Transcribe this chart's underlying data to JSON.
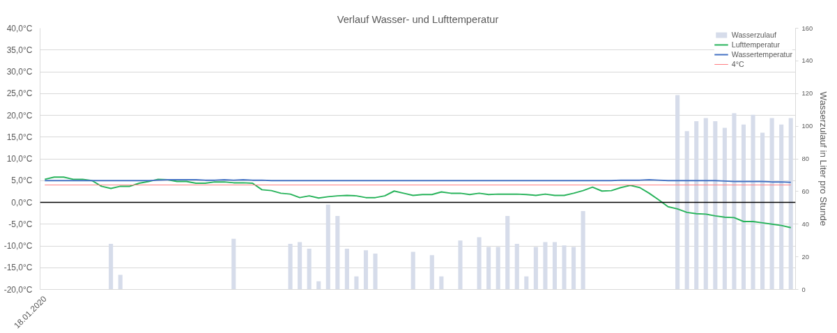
{
  "chart_data": {
    "type": "line",
    "title": "Verlauf Wasser- und Lufttemperatur",
    "y2label": "Wasserzulauf in Liter pro Stunde",
    "categories": [
      "18.01.2020",
      null,
      null,
      null,
      null,
      null,
      null,
      null,
      null,
      null,
      null,
      null,
      null,
      null,
      null,
      null,
      null,
      null,
      null,
      null,
      null,
      null,
      null,
      null,
      null,
      null,
      null,
      null,
      null,
      null,
      null,
      null,
      null,
      null,
      null,
      null,
      null,
      null,
      null,
      null,
      null,
      null,
      null,
      null,
      null,
      null,
      null,
      null,
      null,
      null,
      null,
      null,
      null,
      null,
      null,
      null,
      null,
      null,
      null,
      null,
      null,
      null,
      null,
      null,
      null,
      null,
      null,
      null,
      null,
      null,
      null,
      null,
      null,
      null,
      null,
      null,
      null,
      null,
      null,
      null
    ],
    "series": [
      {
        "name": "Wasserzulauf",
        "type": "bar",
        "axis": "y2",
        "color": "#d6dcea",
        "values": [
          null,
          null,
          null,
          null,
          null,
          null,
          null,
          28,
          9,
          null,
          null,
          null,
          null,
          null,
          null,
          null,
          null,
          null,
          null,
          null,
          31,
          null,
          null,
          null,
          null,
          null,
          28,
          29,
          25,
          5,
          52,
          45,
          25,
          8,
          24,
          22,
          null,
          null,
          null,
          23,
          null,
          21,
          8,
          null,
          30,
          null,
          32,
          26,
          26,
          45,
          28,
          8,
          26,
          29,
          29,
          27,
          26,
          48,
          null,
          null,
          null,
          null,
          null,
          null,
          null,
          null,
          null,
          119,
          97,
          103,
          105,
          103,
          99,
          108,
          101,
          107,
          96,
          105,
          101,
          105
        ]
      },
      {
        "name": "Lufttemperatur",
        "color": "#27b35a",
        "values": [
          5.3,
          5.8,
          5.8,
          5.3,
          5.3,
          5.0,
          3.7,
          3.2,
          3.7,
          3.7,
          4.4,
          4.8,
          5.3,
          5.2,
          4.8,
          4.8,
          4.4,
          4.4,
          4.7,
          4.7,
          4.5,
          4.5,
          4.4,
          2.9,
          2.7,
          2.1,
          1.9,
          1.1,
          1.5,
          1.0,
          1.3,
          1.5,
          1.6,
          1.5,
          1.1,
          1.1,
          1.5,
          2.6,
          2.1,
          1.6,
          1.8,
          1.8,
          2.4,
          2.1,
          2.1,
          1.8,
          2.1,
          1.8,
          1.9,
          1.9,
          1.9,
          1.8,
          1.6,
          1.9,
          1.6,
          1.6,
          2.1,
          2.7,
          3.5,
          2.6,
          2.7,
          3.4,
          3.9,
          3.4,
          2.1,
          0.6,
          -1.0,
          -1.5,
          -2.3,
          -2.6,
          -2.7,
          -3.1,
          -3.4,
          -3.5,
          -4.4,
          -4.4,
          -4.7,
          -5.0,
          -5.3,
          -5.8
        ]
      },
      {
        "name": "Wassertemperatur",
        "color": "#4472c4",
        "values": [
          5.0,
          5.0,
          5.0,
          5.0,
          5.0,
          5.0,
          5.0,
          5.0,
          5.0,
          5.0,
          5.0,
          5.0,
          5.1,
          5.2,
          5.2,
          5.2,
          5.2,
          5.1,
          5.1,
          5.2,
          5.1,
          5.2,
          5.1,
          5.1,
          5.0,
          5.0,
          5.0,
          5.0,
          5.0,
          5.0,
          5.0,
          5.0,
          5.0,
          5.0,
          5.0,
          5.0,
          5.0,
          5.0,
          5.0,
          5.0,
          5.0,
          5.0,
          5.0,
          5.0,
          5.0,
          5.0,
          5.0,
          5.0,
          5.0,
          5.0,
          5.0,
          5.0,
          5.0,
          5.0,
          5.0,
          5.0,
          5.0,
          5.0,
          5.0,
          5.0,
          5.0,
          5.1,
          5.1,
          5.1,
          5.2,
          5.1,
          5.0,
          5.0,
          5.0,
          5.0,
          5.0,
          5.0,
          4.9,
          4.8,
          4.8,
          4.8,
          4.8,
          4.7,
          4.7,
          4.6
        ]
      }
    ],
    "ref_lines": [
      {
        "axis": "y",
        "value": 4,
        "label": "4°C",
        "color": "#ff7c80"
      }
    ],
    "ylim": [
      -20,
      40
    ],
    "yticks": [
      {
        "value": -20,
        "label": "-20,0°C"
      },
      {
        "value": -15,
        "label": "-15,0°C"
      },
      {
        "value": -10,
        "label": "-10,0°C"
      },
      {
        "value": -5,
        "label": "-5,0°C"
      },
      {
        "value": 0,
        "label": "0,0°C"
      },
      {
        "value": 5,
        "label": "5,0°C"
      },
      {
        "value": 10,
        "label": "10,0°C"
      },
      {
        "value": 15,
        "label": "15,0°C"
      },
      {
        "value": 20,
        "label": "20,0°C"
      },
      {
        "value": 25,
        "label": "25,0°C"
      },
      {
        "value": 30,
        "label": "30,0°C"
      },
      {
        "value": 35,
        "label": "35,0°C"
      },
      {
        "value": 40,
        "label": "40,0°C"
      }
    ],
    "y2lim": [
      0,
      160
    ],
    "y2ticks": [
      0,
      20,
      40,
      60,
      80,
      100,
      120,
      140,
      160
    ],
    "grid": "y",
    "legend": "top right"
  }
}
